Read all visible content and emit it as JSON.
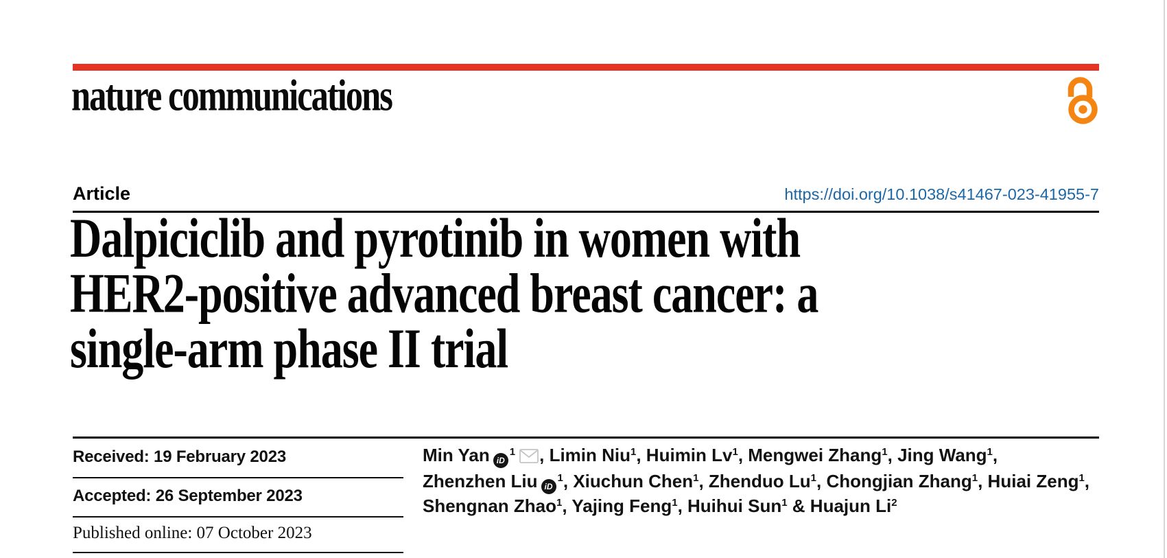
{
  "page": {
    "background": "#ffffff",
    "edge_color": "#d6d6d6"
  },
  "masthead": {
    "brand_bar_color": "#e63323",
    "logo_text": "nature communications",
    "open_access_icon": "open-access-padlock-icon",
    "open_access_color": "#f48512"
  },
  "article_header": {
    "label": "Article",
    "doi_link": "https://doi.org/10.1038/s41467-023-41955-7",
    "doi_color": "#1b67a8",
    "title_lines": [
      "Dalpiciclib and pyrotinib in women with",
      "HER2-positive advanced breast cancer: a",
      "single-arm phase II trial"
    ]
  },
  "dates": [
    {
      "text": "Received: 19 February 2023"
    },
    {
      "text": "Accepted: 26 September 2023"
    },
    {
      "text": "Published online: 07 October 2023"
    }
  ],
  "authors": {
    "lines": [
      [
        {
          "t": "Min Yan"
        },
        {
          "i": "orcid"
        },
        {
          "s": "1"
        },
        {
          "i": "mail"
        },
        {
          "t": ", Limin Niu"
        },
        {
          "s": "1"
        },
        {
          "t": ", Huimin Lv"
        },
        {
          "s": "1"
        },
        {
          "t": ", Mengwei Zhang"
        },
        {
          "s": "1"
        },
        {
          "t": ", Jing Wang"
        },
        {
          "s": "1"
        },
        {
          "t": ","
        }
      ],
      [
        {
          "t": "Zhenzhen Liu"
        },
        {
          "i": "orcid"
        },
        {
          "s": "1"
        },
        {
          "t": ", Xiuchun Chen"
        },
        {
          "s": "1"
        },
        {
          "t": ", Zhenduo Lu"
        },
        {
          "s": "1"
        },
        {
          "t": ", Chongjian Zhang"
        },
        {
          "s": "1"
        },
        {
          "t": ", Huiai Zeng"
        },
        {
          "s": "1"
        },
        {
          "t": ","
        }
      ],
      [
        {
          "t": "Shengnan Zhao"
        },
        {
          "s": "1"
        },
        {
          "t": ", Yajing Feng"
        },
        {
          "s": "1"
        },
        {
          "t": ", Huihui Sun"
        },
        {
          "s": "1"
        },
        {
          "t": " & Huajun Li"
        },
        {
          "s": "2"
        }
      ]
    ]
  },
  "icons": {
    "orcid_label": "iD",
    "orcid_bg": "#151515",
    "orcid_fg": "#ffffff",
    "mail_stroke": "#c4c4c4"
  }
}
